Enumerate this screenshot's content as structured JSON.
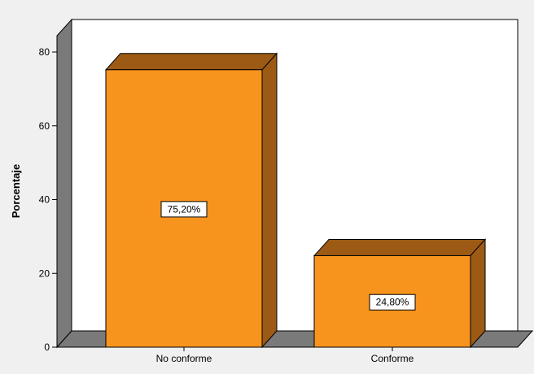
{
  "chart_data": {
    "type": "bar",
    "categories": [
      "No conforme",
      "Conforme"
    ],
    "values": [
      75.2,
      24.8
    ],
    "data_labels": [
      "75,20%",
      "24,80%"
    ],
    "title": "",
    "xlabel": "",
    "ylabel": "Porcentaje",
    "ylim": [
      0,
      80
    ],
    "yticks": [
      0,
      20,
      40,
      60,
      80
    ],
    "ytick_labels": [
      "0",
      "20",
      "40",
      "60",
      "80"
    ],
    "grid": false,
    "legend": "none",
    "style": "3d",
    "colors": {
      "bar_front": "#f7941d",
      "bar_top": "#9c5a14",
      "bar_side": "#9c5a14",
      "wall": "#7a7a7a",
      "floor": "#7a7a7a",
      "plot_bg": "#ffffff",
      "page_bg": "#f0f0f0"
    }
  }
}
